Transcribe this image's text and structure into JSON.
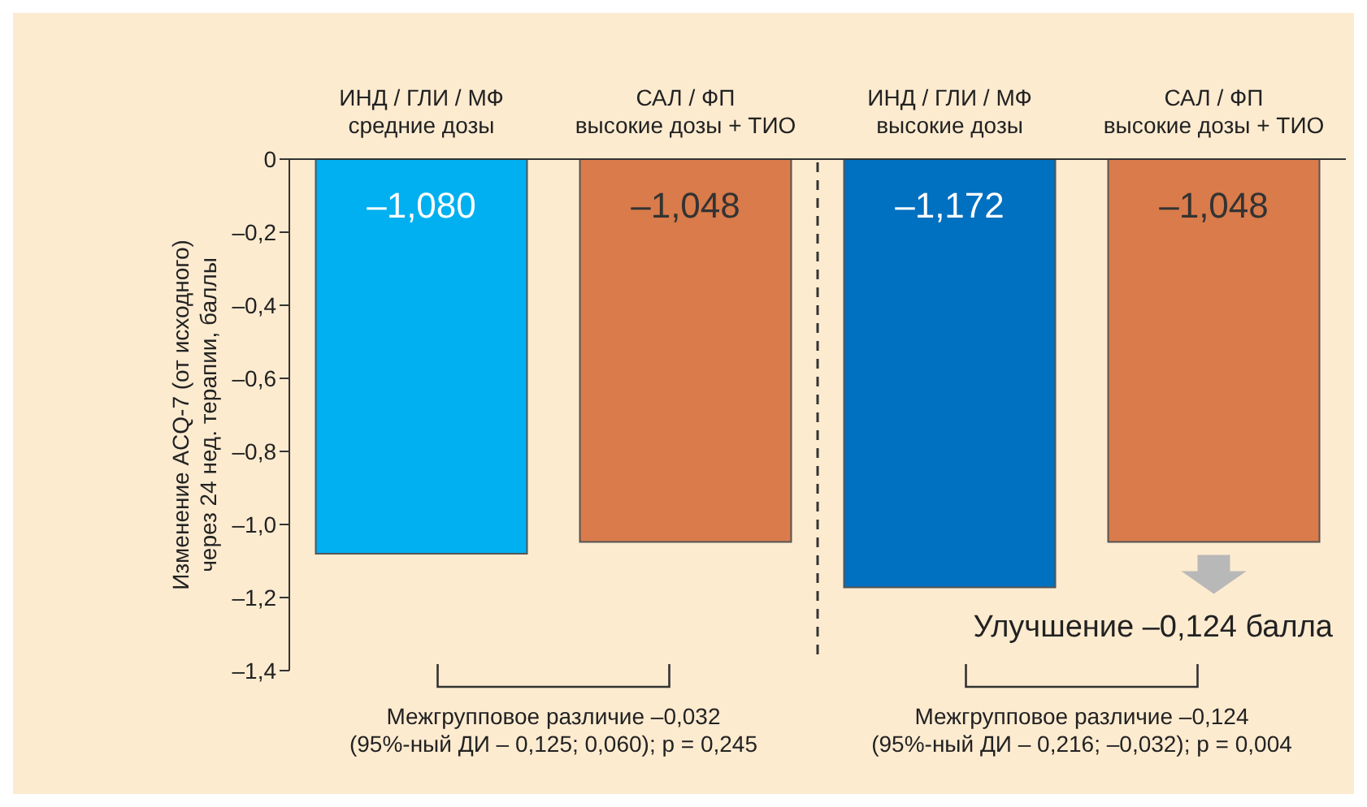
{
  "chart_data": {
    "type": "bar",
    "ylabel": "Изменение ACQ-7 (от исходного)\nчерез 24 нед. терапии, баллы",
    "categories": [
      "ИНД / ГЛИ / МФ\nсредние дозы",
      "САЛ / ФП\nвысокие дозы + ТИО",
      "ИНД / ГЛИ / МФ\nвысокие дозы",
      "САЛ / ФП\nвысокие дозы + ТИО"
    ],
    "values": [
      -1.08,
      -1.048,
      -1.172,
      -1.048
    ],
    "colors": [
      "#00b0f0",
      "#d97b4a",
      "#0070c0",
      "#d97b4a"
    ],
    "value_labels": [
      "–1,080",
      "–1,048",
      "–1,172",
      "–1,048"
    ],
    "ylim": [
      -1.4,
      0
    ],
    "yticks": [
      {
        "value": -1.4,
        "label": "–1,4"
      },
      {
        "value": -1.2,
        "label": "–1,2"
      },
      {
        "value": -1.0,
        "label": "–1,0"
      },
      {
        "value": -0.8,
        "label": "–0,8"
      },
      {
        "value": -0.6,
        "label": "–0,6"
      },
      {
        "value": -0.4,
        "label": "–0,4"
      },
      {
        "value": -0.2,
        "label": "–0,2"
      },
      0
    ],
    "annotations": [
      "Межгрупповое различие –0,032\n(95%-ный ДИ – 0,125; 0,060); p = 0,245",
      "Межгрупповое различие –0,124\n(95%-ный ДИ – 0,216; –0,032); p = 0,004",
      "Улучшение –0,124 балла"
    ],
    "grid": false,
    "legend": false
  }
}
